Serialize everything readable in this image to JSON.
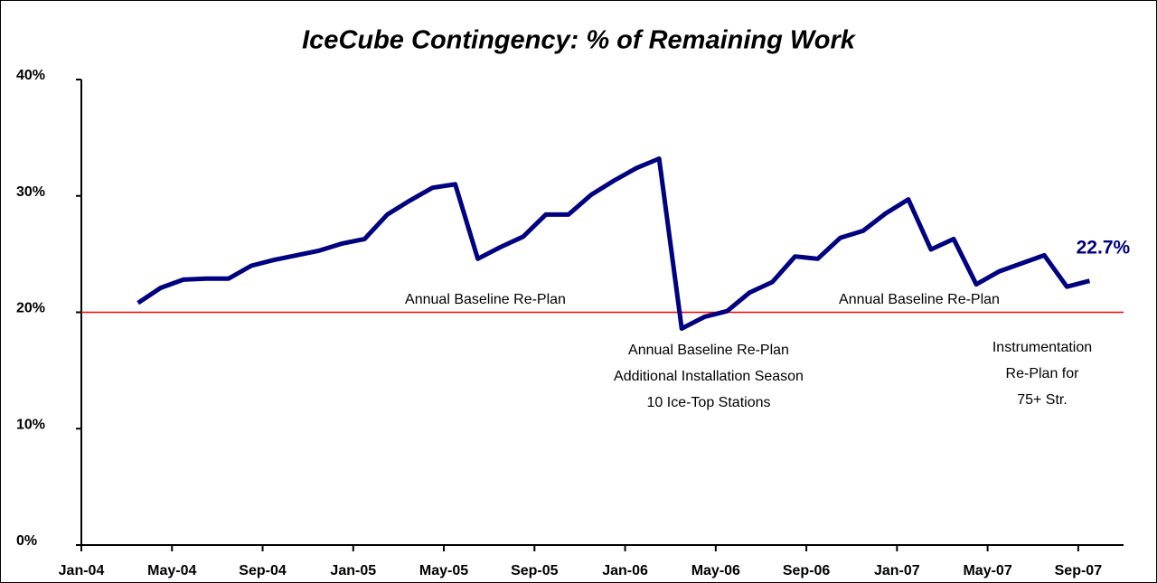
{
  "chart_data": {
    "type": "line",
    "title": "IceCube Contingency: % of Remaining Work",
    "categories": [
      "Jan-04",
      null,
      null,
      null,
      "May-04",
      null,
      null,
      null,
      "Sep-04",
      null,
      null,
      null,
      "Jan-05",
      null,
      null,
      null,
      "May-05",
      null,
      null,
      null,
      "Sep-05",
      null,
      null,
      null,
      "Jan-06",
      null,
      null,
      null,
      "May-06",
      null,
      null,
      null,
      "Sep-06",
      null,
      null,
      null,
      "Jan-07",
      null,
      null,
      null,
      "May-07",
      null,
      null,
      null,
      "Sep-07",
      null
    ],
    "series": [
      {
        "color": "#000080",
        "values": [
          null,
          null,
          20.8,
          22.1,
          22.8,
          22.9,
          22.9,
          24.0,
          24.5,
          24.9,
          25.3,
          25.9,
          26.3,
          28.4,
          29.6,
          30.7,
          31.0,
          24.6,
          25.6,
          26.5,
          28.4,
          28.4,
          30.1,
          31.3,
          32.4,
          33.2,
          18.6,
          19.6,
          20.1,
          21.7,
          22.6,
          24.8,
          24.6,
          26.4,
          27.0,
          28.5,
          29.7,
          25.4,
          26.3,
          22.4,
          23.5,
          24.2,
          24.9,
          22.2,
          22.7,
          null
        ],
        "value_labels": [
          null,
          null,
          null,
          null,
          null,
          null,
          null,
          null,
          null,
          null,
          null,
          null,
          null,
          null,
          null,
          null,
          null,
          null,
          null,
          null,
          null,
          null,
          null,
          null,
          null,
          null,
          null,
          null,
          null,
          null,
          null,
          null,
          null,
          null,
          null,
          null,
          null,
          null,
          null,
          null,
          null,
          null,
          null,
          null,
          "22.7%",
          null
        ]
      }
    ],
    "ylim": [
      0,
      40
    ],
    "yticks": [
      {
        "value": 0,
        "label": "0%"
      },
      {
        "value": 10,
        "label": "10%"
      },
      {
        "value": 20,
        "label": "20%"
      },
      {
        "value": 30,
        "label": "30%"
      },
      {
        "value": 40,
        "label": "40%"
      }
    ],
    "reference_line": {
      "value": 20,
      "color": "#ff0000"
    },
    "annotations": [
      [
        "Annual Baseline Re-Plan"
      ],
      [
        "Annual Baseline Re-Plan"
      ],
      [
        "Annual Baseline Re-Plan",
        "Additional Installation Season",
        "10 Ice-Top Stations"
      ],
      [
        "Instrumentation",
        "Re-Plan for",
        "75+ Str."
      ]
    ]
  }
}
